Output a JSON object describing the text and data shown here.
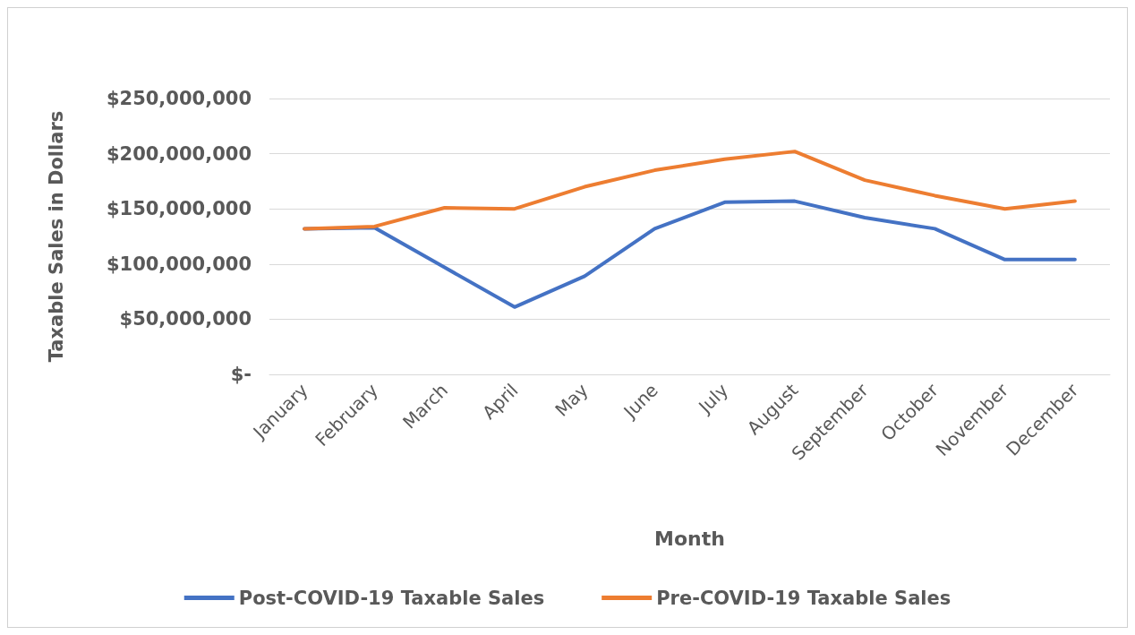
{
  "chart_data": {
    "type": "line",
    "xlabel": "Month",
    "ylabel": "Taxable Sales in Dollars",
    "categories": [
      "January",
      "February",
      "March",
      "April",
      "May",
      "June",
      "July",
      "August",
      "September",
      "October",
      "November",
      "December"
    ],
    "series": [
      {
        "name": "Post-COVID-19 Taxable Sales",
        "color": "#4472c4",
        "values": [
          132000000,
          133000000,
          97000000,
          61000000,
          89000000,
          132000000,
          156000000,
          157000000,
          142000000,
          132000000,
          104000000,
          104000000
        ]
      },
      {
        "name": "Pre-COVID-19 Taxable Sales",
        "color": "#ed7d31",
        "values": [
          132000000,
          134000000,
          151000000,
          150000000,
          170000000,
          185000000,
          195000000,
          202000000,
          176000000,
          162000000,
          150000000,
          157000000
        ]
      }
    ],
    "ylim": [
      0,
      250000000
    ],
    "yticks": [
      {
        "value": 0,
        "label": "$-"
      },
      {
        "value": 50000000,
        "label": "$50,000,000"
      },
      {
        "value": 100000000,
        "label": "$100,000,000"
      },
      {
        "value": 150000000,
        "label": "$150,000,000"
      },
      {
        "value": 200000000,
        "label": "$200,000,000"
      },
      {
        "value": 250000000,
        "label": "$250,000,000"
      }
    ],
    "grid": "y",
    "legend": "bottom",
    "marker": "none",
    "line_style": "solid"
  }
}
